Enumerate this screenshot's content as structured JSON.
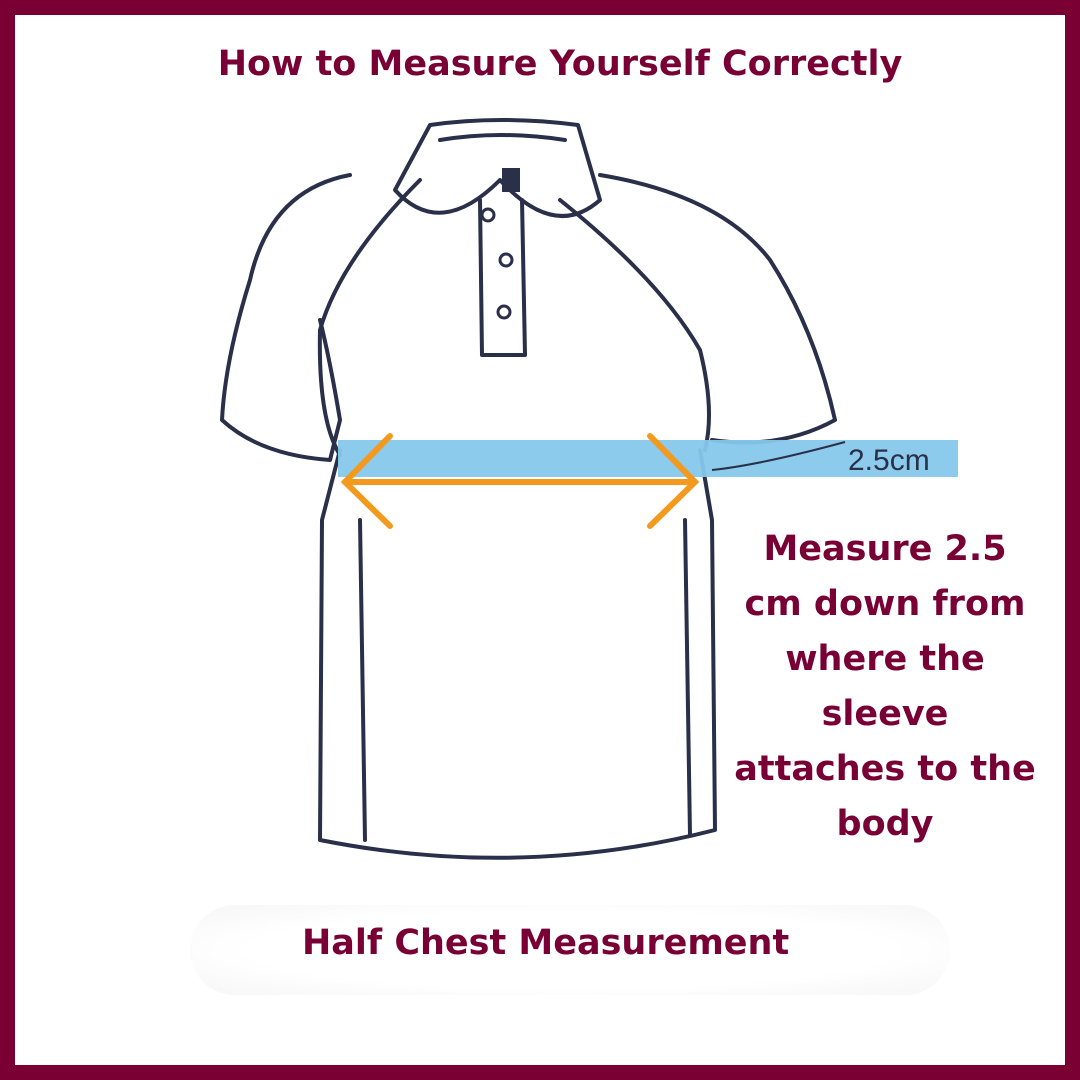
{
  "title": "How to Measure Yourself Correctly",
  "instruction": "Measure 2.5 cm down from where the sleeve attaches to the body",
  "instruction_lines": [
    "Measure 2.5",
    "cm down from",
    "where the",
    "sleeve",
    "attaches to the",
    "body"
  ],
  "caption": "Half Chest Measurement",
  "offset_label": "2.5cm",
  "colors": {
    "border": "#7a0034",
    "text": "#780035",
    "band": "#86c8ea",
    "arrow": "#f39a1e",
    "outline": "#2a2f4a"
  }
}
